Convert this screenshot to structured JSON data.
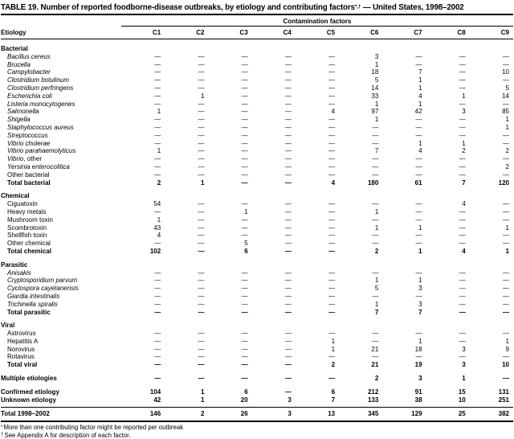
{
  "title": {
    "prefix": "TABLE 19. Number of reported foodborne-disease outbreaks, by etiology and contributing factors",
    "superscript": "*,†",
    "suffix": " — United States, 1998–2002"
  },
  "table": {
    "col_group_header": "Contamination factors",
    "row_header": "Etiology",
    "columns": [
      "C1",
      "C2",
      "C3",
      "C4",
      "C5",
      "C6",
      "C7",
      "C8",
      "C9"
    ],
    "sections": [
      {
        "name": "Bacterial",
        "rows": [
          {
            "label": "Bacillus cereus",
            "style": "italic",
            "values": [
              "—",
              "—",
              "—",
              "—",
              "—",
              "3",
              "—",
              "—",
              "—"
            ]
          },
          {
            "label": "Brucella",
            "style": "italic",
            "values": [
              "—",
              "—",
              "—",
              "—",
              "—",
              "1",
              "—",
              "—",
              "—"
            ]
          },
          {
            "label": "Campylobacter",
            "style": "italic",
            "values": [
              "—",
              "—",
              "—",
              "—",
              "—",
              "18",
              "7",
              "—",
              "10"
            ]
          },
          {
            "label": "Clostridium botulinum",
            "style": "italic",
            "values": [
              "—",
              "—",
              "—",
              "—",
              "—",
              "5",
              "1",
              "—",
              "—"
            ]
          },
          {
            "label": "Clostridium perfringens",
            "style": "italic",
            "values": [
              "—",
              "—",
              "—",
              "—",
              "—",
              "14",
              "1",
              "—",
              "5"
            ]
          },
          {
            "label": "Escherichia coli",
            "style": "italic",
            "values": [
              "—",
              "1",
              "—",
              "—",
              "—",
              "33",
              "4",
              "1",
              "14"
            ]
          },
          {
            "label": "Listeria monocytogenes",
            "style": "italic",
            "values": [
              "—",
              "—",
              "—",
              "—",
              "—",
              "1",
              "1",
              "—",
              "—"
            ]
          },
          {
            "label": "Salmonella",
            "style": "italic",
            "values": [
              "1",
              "—",
              "—",
              "—",
              "4",
              "97",
              "42",
              "3",
              "85"
            ]
          },
          {
            "label": "Shigella",
            "style": "italic",
            "values": [
              "—",
              "—",
              "—",
              "—",
              "—",
              "1",
              "—",
              "—",
              "1"
            ]
          },
          {
            "label": "Staphylococcus aureus",
            "style": "italic",
            "values": [
              "—",
              "—",
              "—",
              "—",
              "—",
              "—",
              "—",
              "—",
              "1"
            ]
          },
          {
            "label": "Streptococcus",
            "style": "italic",
            "values": [
              "—",
              "—",
              "—",
              "—",
              "—",
              "—",
              "—",
              "—",
              "—"
            ]
          },
          {
            "label": "Vibrio cholerae",
            "style": "italic",
            "values": [
              "—",
              "—",
              "—",
              "—",
              "—",
              "—",
              "1",
              "1",
              "—"
            ]
          },
          {
            "label": "Vibrio parahaemolyticus",
            "style": "italic",
            "values": [
              "1",
              "—",
              "—",
              "—",
              "—",
              "7",
              "4",
              "2",
              "2"
            ]
          },
          {
            "label": "Vibrio, other",
            "style": "italic",
            "label_parts": [
              {
                "text": "Vibrio",
                "italic": true
              },
              {
                "text": ", other",
                "italic": false
              }
            ],
            "values": [
              "—",
              "—",
              "—",
              "—",
              "—",
              "—",
              "—",
              "—",
              "—"
            ]
          },
          {
            "label": "Yersinia enterocolitica",
            "style": "italic",
            "values": [
              "—",
              "—",
              "—",
              "—",
              "—",
              "—",
              "—",
              "—",
              "2"
            ]
          },
          {
            "label": "Other bacterial",
            "style": "plain",
            "values": [
              "—",
              "—",
              "—",
              "—",
              "—",
              "—",
              "—",
              "—",
              "—"
            ]
          },
          {
            "label": "Total bacterial",
            "style": "bold",
            "values": [
              "2",
              "1",
              "—",
              "—",
              "4",
              "180",
              "61",
              "7",
              "120"
            ]
          }
        ]
      },
      {
        "name": "Chemical",
        "rows": [
          {
            "label": "Ciguatoxin",
            "style": "plain",
            "values": [
              "54",
              "—",
              "—",
              "—",
              "—",
              "—",
              "—",
              "4",
              "—"
            ]
          },
          {
            "label": "Heavy metals",
            "style": "plain",
            "values": [
              "—",
              "—",
              "1",
              "—",
              "—",
              "1",
              "—",
              "—",
              "—"
            ]
          },
          {
            "label": "Mushroom toxin",
            "style": "plain",
            "values": [
              "1",
              "—",
              "—",
              "—",
              "—",
              "—",
              "—",
              "—",
              "—"
            ]
          },
          {
            "label": "Scombrotoxin",
            "style": "plain",
            "values": [
              "43",
              "—",
              "—",
              "—",
              "—",
              "1",
              "1",
              "—",
              "1"
            ]
          },
          {
            "label": "Shellfish toxin",
            "style": "plain",
            "values": [
              "4",
              "—",
              "—",
              "—",
              "—",
              "—",
              "—",
              "—",
              "—"
            ]
          },
          {
            "label": "Other chemical",
            "style": "plain",
            "values": [
              "—",
              "—",
              "5",
              "—",
              "—",
              "—",
              "—",
              "—",
              "—"
            ]
          },
          {
            "label": "Total chemical",
            "style": "bold",
            "values": [
              "102",
              "—",
              "6",
              "—",
              "—",
              "2",
              "1",
              "4",
              "1"
            ]
          }
        ]
      },
      {
        "name": "Parasitic",
        "rows": [
          {
            "label": "Anisakis",
            "style": "italic",
            "values": [
              "—",
              "—",
              "—",
              "—",
              "—",
              "—",
              "—",
              "—",
              "—"
            ]
          },
          {
            "label": "Cryptosporidium parvum",
            "style": "italic",
            "values": [
              "—",
              "—",
              "—",
              "—",
              "—",
              "1",
              "1",
              "—",
              "—"
            ]
          },
          {
            "label": "Cyclospora cayetanensis",
            "style": "italic",
            "values": [
              "—",
              "—",
              "—",
              "—",
              "—",
              "5",
              "3",
              "—",
              "—"
            ]
          },
          {
            "label": "Giardia intestinalis",
            "style": "italic",
            "values": [
              "—",
              "—",
              "—",
              "—",
              "—",
              "—",
              "—",
              "—",
              "—"
            ]
          },
          {
            "label": "Trichinella spiralis",
            "style": "italic",
            "values": [
              "—",
              "—",
              "—",
              "—",
              "—",
              "1",
              "3",
              "—",
              "—"
            ]
          },
          {
            "label": "Total parasitic",
            "style": "bold",
            "values": [
              "—",
              "—",
              "—",
              "—",
              "—",
              "7",
              "7",
              "—",
              "—"
            ]
          }
        ]
      },
      {
        "name": "Viral",
        "rows": [
          {
            "label": "Astrovirus",
            "style": "plain",
            "values": [
              "—",
              "—",
              "—",
              "—",
              "—",
              "—",
              "—",
              "—",
              "—"
            ]
          },
          {
            "label": "Hepatitis A",
            "style": "plain",
            "values": [
              "—",
              "—",
              "—",
              "—",
              "1",
              "—",
              "1",
              "—",
              "1"
            ]
          },
          {
            "label": "Norovirus",
            "style": "plain",
            "values": [
              "—",
              "—",
              "—",
              "—",
              "1",
              "21",
              "18",
              "3",
              "9"
            ]
          },
          {
            "label": "Rotavirus",
            "style": "plain",
            "values": [
              "—",
              "—",
              "—",
              "—",
              "—",
              "—",
              "—",
              "—",
              "—"
            ]
          },
          {
            "label": "Total viral",
            "style": "bold",
            "values": [
              "—",
              "—",
              "—",
              "—",
              "2",
              "21",
              "19",
              "3",
              "10"
            ]
          }
        ]
      }
    ],
    "extra_rows": [
      {
        "label": "Multiple etiologies",
        "style": "bold",
        "gap_before": true,
        "values": [
          "—",
          "—",
          "—",
          "—",
          "—",
          "2",
          "3",
          "1",
          "—"
        ]
      },
      {
        "label": "Confirmed etiology",
        "style": "bold",
        "gap_before": true,
        "values": [
          "104",
          "1",
          "6",
          "—",
          "6",
          "212",
          "91",
          "15",
          "131"
        ]
      },
      {
        "label": "Unknown etiology",
        "style": "bold",
        "gap_after": true,
        "values": [
          "42",
          "1",
          "20",
          "3",
          "7",
          "133",
          "38",
          "10",
          "251"
        ]
      },
      {
        "label": "Total 1998–2002",
        "style": "bold",
        "rule_above": true,
        "thick_rule_below": true,
        "values": [
          "146",
          "2",
          "26",
          "3",
          "13",
          "345",
          "129",
          "25",
          "382"
        ]
      }
    ],
    "footnotes": [
      {
        "marker": "*",
        "text": "More than one contributing factor might be reported per outbreak"
      },
      {
        "marker": "†",
        "text": "See Appendix A for description of each factor."
      }
    ]
  }
}
